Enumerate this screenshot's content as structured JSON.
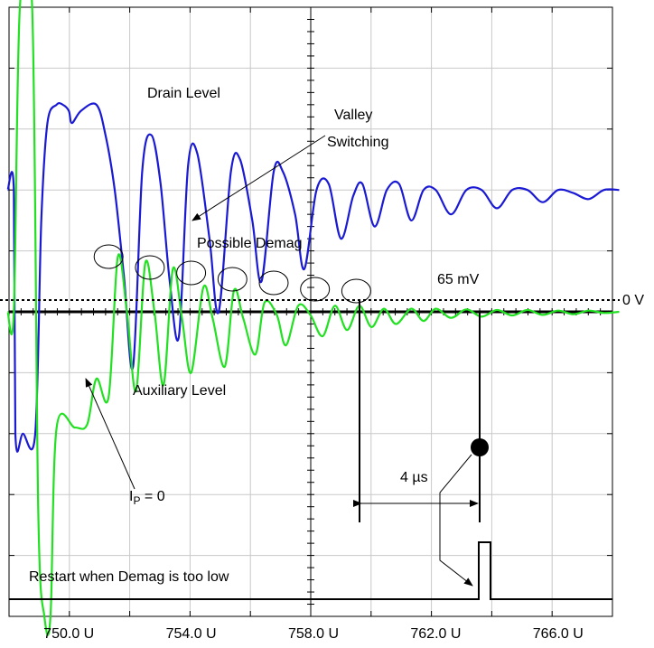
{
  "chart_data": {
    "type": "line",
    "title": "",
    "xlabel": "",
    "ylabel": "",
    "x_tick_labels": [
      "750.0 U",
      "754.0 U",
      "758.0 U",
      "762.0 U",
      "766.0 U"
    ],
    "x_ticks": [
      750,
      754,
      758,
      762,
      766
    ],
    "xlim": [
      748,
      768
    ],
    "ylim": [
      -5,
      5
    ],
    "grid": true,
    "colors": {
      "drain": "#1a1ad4",
      "aux": "#22e022",
      "restart": "#000000",
      "grid": "#c8c8c8",
      "threshold": "#000000"
    },
    "series": [
      {
        "name": "Drain Level",
        "x": [
          748.0,
          748.2,
          748.25,
          748.5,
          748.9,
          749.1,
          749.3,
          749.6,
          749.8,
          750.0,
          750.1,
          750.4,
          750.9,
          751.2,
          751.5,
          751.8,
          752.1,
          752.4,
          752.7,
          753.0,
          753.3,
          753.6,
          753.9,
          754.2,
          754.6,
          754.9,
          755.3,
          755.6,
          756.0,
          756.3,
          756.7,
          757.0,
          757.4,
          757.7,
          758.1,
          758.5,
          758.9,
          759.3,
          759.6,
          760.0,
          760.4,
          760.8,
          761.2,
          761.6,
          762.0,
          762.5,
          763.0,
          763.5,
          764.0,
          764.5,
          765.0,
          765.5,
          766.0,
          766.5,
          767.0,
          767.5,
          768.0
        ],
        "y": [
          2.0,
          2.0,
          -2.0,
          -2.0,
          -2.0,
          1.5,
          3.1,
          3.4,
          3.4,
          3.3,
          3.1,
          3.3,
          3.4,
          2.9,
          2.0,
          0.6,
          -0.9,
          2.3,
          2.9,
          2.1,
          0.5,
          -0.4,
          2.4,
          2.6,
          1.2,
          0.0,
          2.3,
          2.5,
          1.5,
          0.5,
          2.3,
          2.3,
          1.6,
          0.7,
          2.0,
          2.1,
          1.2,
          1.9,
          2.1,
          1.4,
          2.0,
          2.1,
          1.5,
          2.0,
          2.0,
          1.6,
          2.0,
          2.0,
          1.7,
          2.0,
          2.0,
          1.8,
          2.0,
          1.95,
          1.85,
          2.0,
          2.0
        ]
      },
      {
        "name": "Auxiliary Level",
        "x": [
          748.0,
          748.2,
          748.4,
          748.8,
          749.0,
          749.2,
          749.4,
          749.6,
          750.2,
          750.6,
          750.9,
          751.3,
          751.6,
          751.9,
          752.2,
          752.5,
          752.8,
          753.1,
          753.4,
          753.7,
          754.0,
          754.4,
          754.7,
          755.1,
          755.4,
          755.7,
          756.1,
          756.4,
          756.8,
          757.1,
          757.5,
          757.9,
          758.3,
          758.7,
          759.1,
          759.5,
          759.9,
          760.3,
          760.7,
          761.2,
          761.6,
          762.0,
          762.5,
          763.0,
          763.5,
          764.0,
          764.5,
          765.0,
          765.5,
          766.0,
          766.5,
          767.0,
          767.5,
          768.0
        ],
        "y": [
          0.0,
          0.0,
          5.0,
          5.0,
          -3.3,
          -5.0,
          -5.0,
          -1.9,
          -1.9,
          -1.85,
          -1.1,
          -1.4,
          0.9,
          0.0,
          -1.3,
          0.8,
          0.0,
          -1.2,
          0.7,
          -0.1,
          -1.0,
          0.4,
          -0.1,
          -0.9,
          0.35,
          -0.1,
          -0.7,
          0.15,
          -0.05,
          -0.55,
          0.1,
          -0.05,
          -0.4,
          0.1,
          -0.3,
          0.1,
          -0.25,
          0.05,
          -0.2,
          0.05,
          -0.15,
          0.05,
          -0.1,
          0.04,
          -0.08,
          0.03,
          -0.06,
          0.03,
          -0.05,
          0.02,
          -0.04,
          0.02,
          -0.02,
          0.0
        ]
      }
    ],
    "threshold": {
      "label": "65 mV",
      "level_label": "0 V",
      "value": 0.2
    },
    "annotations": {
      "drain_level": "Drain Level",
      "valley_switching_1": "Valley",
      "valley_switching_2": "Switching",
      "possible_demag": "Possible Demag",
      "auxiliary_level": "Auxiliary Level",
      "ip_main": "I",
      "ip_sub": "P",
      "ip_rest": " = 0",
      "delay": "4 µs",
      "restart": "Restart when Demag is too low"
    },
    "demag_markers_x": [
      751.3,
      752.65,
      754.0,
      755.35,
      756.7,
      758.05,
      759.4
    ]
  }
}
